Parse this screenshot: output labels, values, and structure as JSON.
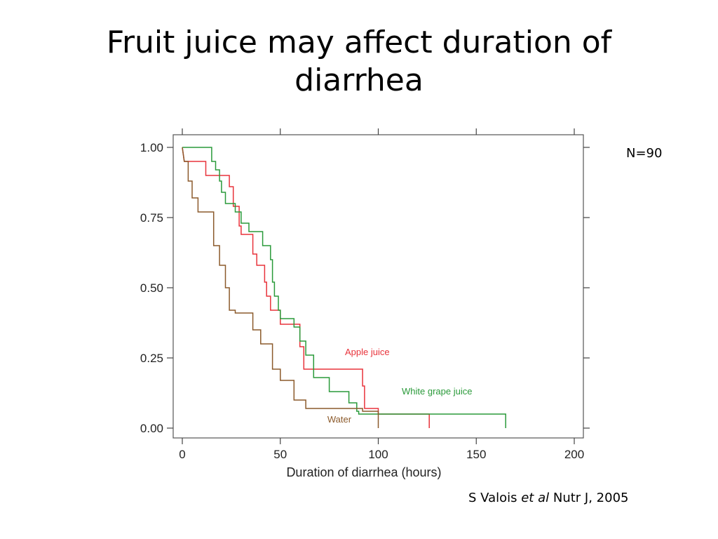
{
  "slide": {
    "title": "Fruit juice may affect duration of diarrhea",
    "n_label": "N=90",
    "citation_author": "S Valois",
    "citation_etal": "et al",
    "citation_journal": "Nutr J, 2005"
  },
  "chart_data": {
    "type": "line",
    "step": true,
    "xlabel": "Duration of diarrhea (hours)",
    "ylabel": "",
    "xlim": [
      0,
      200
    ],
    "ylim": [
      0,
      1
    ],
    "x_ticks": [
      0,
      50,
      100,
      150,
      200
    ],
    "x_tick_labels": [
      "0",
      "50",
      "100",
      "150",
      "200"
    ],
    "y_ticks": [
      0,
      0.25,
      0.5,
      0.75,
      1
    ],
    "y_tick_labels": [
      "0.00",
      "0.25",
      "0.50",
      "0.75",
      "1.00"
    ],
    "grid": false,
    "series": [
      {
        "name": "Apple juice",
        "color": "#e8333b",
        "points": [
          [
            0,
            1.0
          ],
          [
            1,
            0.95
          ],
          [
            12,
            0.95
          ],
          [
            12,
            0.9
          ],
          [
            24,
            0.9
          ],
          [
            24,
            0.86
          ],
          [
            26,
            0.86
          ],
          [
            26,
            0.79
          ],
          [
            29,
            0.79
          ],
          [
            29,
            0.72
          ],
          [
            30,
            0.72
          ],
          [
            30,
            0.69
          ],
          [
            36,
            0.69
          ],
          [
            36,
            0.62
          ],
          [
            38,
            0.62
          ],
          [
            38,
            0.58
          ],
          [
            42,
            0.58
          ],
          [
            42,
            0.52
          ],
          [
            43,
            0.52
          ],
          [
            43,
            0.47
          ],
          [
            45,
            0.47
          ],
          [
            45,
            0.42
          ],
          [
            50,
            0.42
          ],
          [
            50,
            0.37
          ],
          [
            60,
            0.37
          ],
          [
            60,
            0.29
          ],
          [
            62,
            0.29
          ],
          [
            62,
            0.21
          ],
          [
            92,
            0.21
          ],
          [
            92,
            0.15
          ],
          [
            93,
            0.15
          ],
          [
            93,
            0.07
          ],
          [
            100,
            0.07
          ],
          [
            100,
            0.05
          ],
          [
            126,
            0.05
          ],
          [
            126,
            0.0
          ]
        ]
      },
      {
        "name": "White grape juice",
        "color": "#2a9a3a",
        "points": [
          [
            0,
            1.0
          ],
          [
            15,
            1.0
          ],
          [
            15,
            0.95
          ],
          [
            17,
            0.95
          ],
          [
            17,
            0.92
          ],
          [
            19,
            0.92
          ],
          [
            19,
            0.88
          ],
          [
            20,
            0.88
          ],
          [
            20,
            0.84
          ],
          [
            22,
            0.84
          ],
          [
            22,
            0.8
          ],
          [
            27,
            0.8
          ],
          [
            27,
            0.77
          ],
          [
            30,
            0.77
          ],
          [
            30,
            0.73
          ],
          [
            34,
            0.73
          ],
          [
            34,
            0.7
          ],
          [
            41,
            0.7
          ],
          [
            41,
            0.65
          ],
          [
            45,
            0.65
          ],
          [
            45,
            0.6
          ],
          [
            46,
            0.6
          ],
          [
            46,
            0.52
          ],
          [
            47,
            0.52
          ],
          [
            47,
            0.47
          ],
          [
            49,
            0.47
          ],
          [
            49,
            0.42
          ],
          [
            50,
            0.42
          ],
          [
            50,
            0.39
          ],
          [
            57,
            0.39
          ],
          [
            57,
            0.36
          ],
          [
            60,
            0.36
          ],
          [
            60,
            0.31
          ],
          [
            63,
            0.31
          ],
          [
            63,
            0.26
          ],
          [
            67,
            0.26
          ],
          [
            67,
            0.18
          ],
          [
            75,
            0.18
          ],
          [
            75,
            0.13
          ],
          [
            85,
            0.13
          ],
          [
            85,
            0.09
          ],
          [
            89,
            0.09
          ],
          [
            89,
            0.06
          ],
          [
            90,
            0.06
          ],
          [
            90,
            0.05
          ],
          [
            165,
            0.05
          ],
          [
            165,
            0.0
          ]
        ]
      },
      {
        "name": "Water",
        "color": "#8b5a2b",
        "points": [
          [
            0,
            1.0
          ],
          [
            1,
            0.95
          ],
          [
            3,
            0.95
          ],
          [
            3,
            0.88
          ],
          [
            5,
            0.88
          ],
          [
            5,
            0.82
          ],
          [
            8,
            0.82
          ],
          [
            8,
            0.77
          ],
          [
            16,
            0.77
          ],
          [
            16,
            0.65
          ],
          [
            19,
            0.65
          ],
          [
            19,
            0.58
          ],
          [
            22,
            0.58
          ],
          [
            22,
            0.5
          ],
          [
            24,
            0.5
          ],
          [
            24,
            0.42
          ],
          [
            27,
            0.42
          ],
          [
            27,
            0.41
          ],
          [
            36,
            0.41
          ],
          [
            36,
            0.35
          ],
          [
            40,
            0.35
          ],
          [
            40,
            0.3
          ],
          [
            46,
            0.3
          ],
          [
            46,
            0.21
          ],
          [
            50,
            0.21
          ],
          [
            50,
            0.17
          ],
          [
            57,
            0.17
          ],
          [
            57,
            0.1
          ],
          [
            63,
            0.1
          ],
          [
            63,
            0.07
          ],
          [
            92,
            0.07
          ],
          [
            92,
            0.06
          ],
          [
            100,
            0.06
          ],
          [
            100,
            0.0
          ]
        ]
      }
    ],
    "annotations": [
      {
        "text": "Apple juice",
        "x": 83,
        "y": 0.26,
        "color": "#e8333b"
      },
      {
        "text": "White grape juice",
        "x": 112,
        "y": 0.12,
        "color": "#2a9a3a"
      },
      {
        "text": "Water",
        "x": 74,
        "y": 0.02,
        "color": "#8b5a2b"
      }
    ]
  }
}
